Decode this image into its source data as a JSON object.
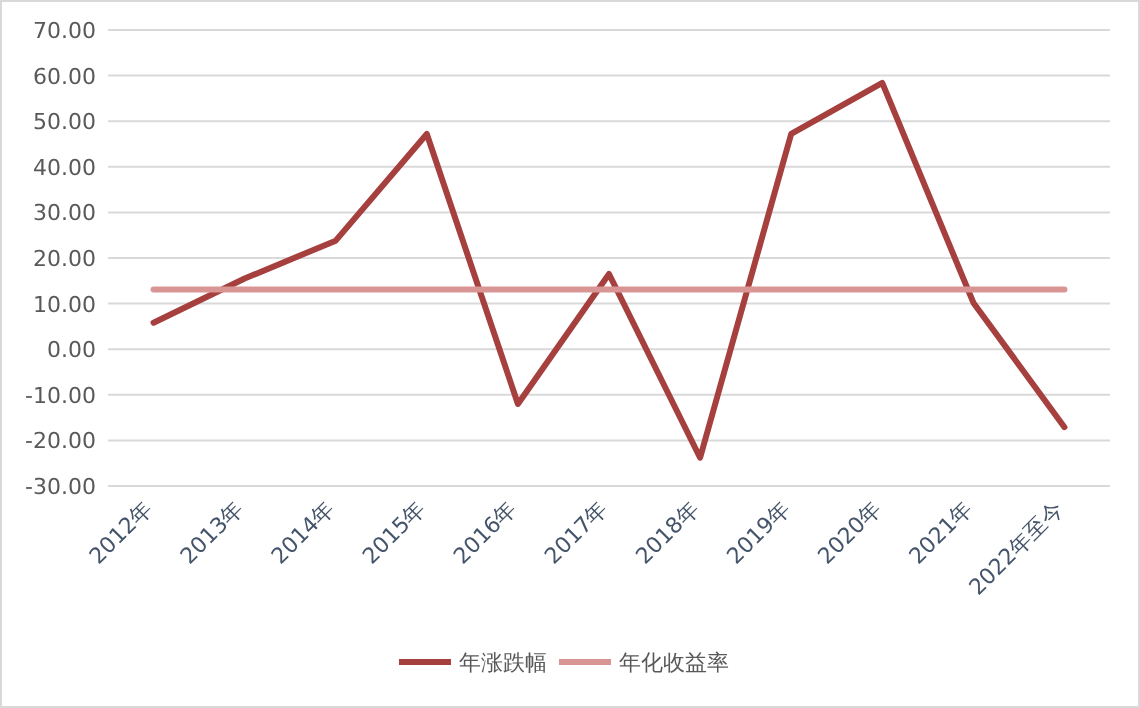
{
  "chart_data": {
    "type": "line",
    "categories": [
      "2012年",
      "2013年",
      "2014年",
      "2015年",
      "2016年",
      "2017年",
      "2018年",
      "2019年",
      "2020年",
      "2021年",
      "2022年至今"
    ],
    "series": [
      {
        "name": "年涨跌幅",
        "color": "#a5403f",
        "values": [
          5.8,
          15.5,
          23.8,
          47.2,
          -12.0,
          16.5,
          -23.8,
          47.2,
          58.4,
          10.2,
          -17.1
        ]
      },
      {
        "name": "年化收益率",
        "color": "#d99594",
        "values": [
          13.1,
          13.1,
          13.1,
          13.1,
          13.1,
          13.1,
          13.1,
          13.1,
          13.1,
          13.1,
          13.1
        ]
      }
    ],
    "ylim": [
      -30,
      70
    ],
    "yticks": [
      {
        "value": -30,
        "label": "-30.00"
      },
      {
        "value": -20,
        "label": "-20.00"
      },
      {
        "value": -10,
        "label": "-10.00"
      },
      {
        "value": 0,
        "label": "0.00"
      },
      {
        "value": 10,
        "label": "10.00"
      },
      {
        "value": 20,
        "label": "20.00"
      },
      {
        "value": 30,
        "label": "30.00"
      },
      {
        "value": 40,
        "label": "40.00"
      },
      {
        "value": 50,
        "label": "50.00"
      },
      {
        "value": 60,
        "label": "60.00"
      },
      {
        "value": 70,
        "label": "70.00"
      }
    ],
    "grid": "y",
    "legend": "bottom",
    "marker": "none",
    "line_style": "solid"
  }
}
